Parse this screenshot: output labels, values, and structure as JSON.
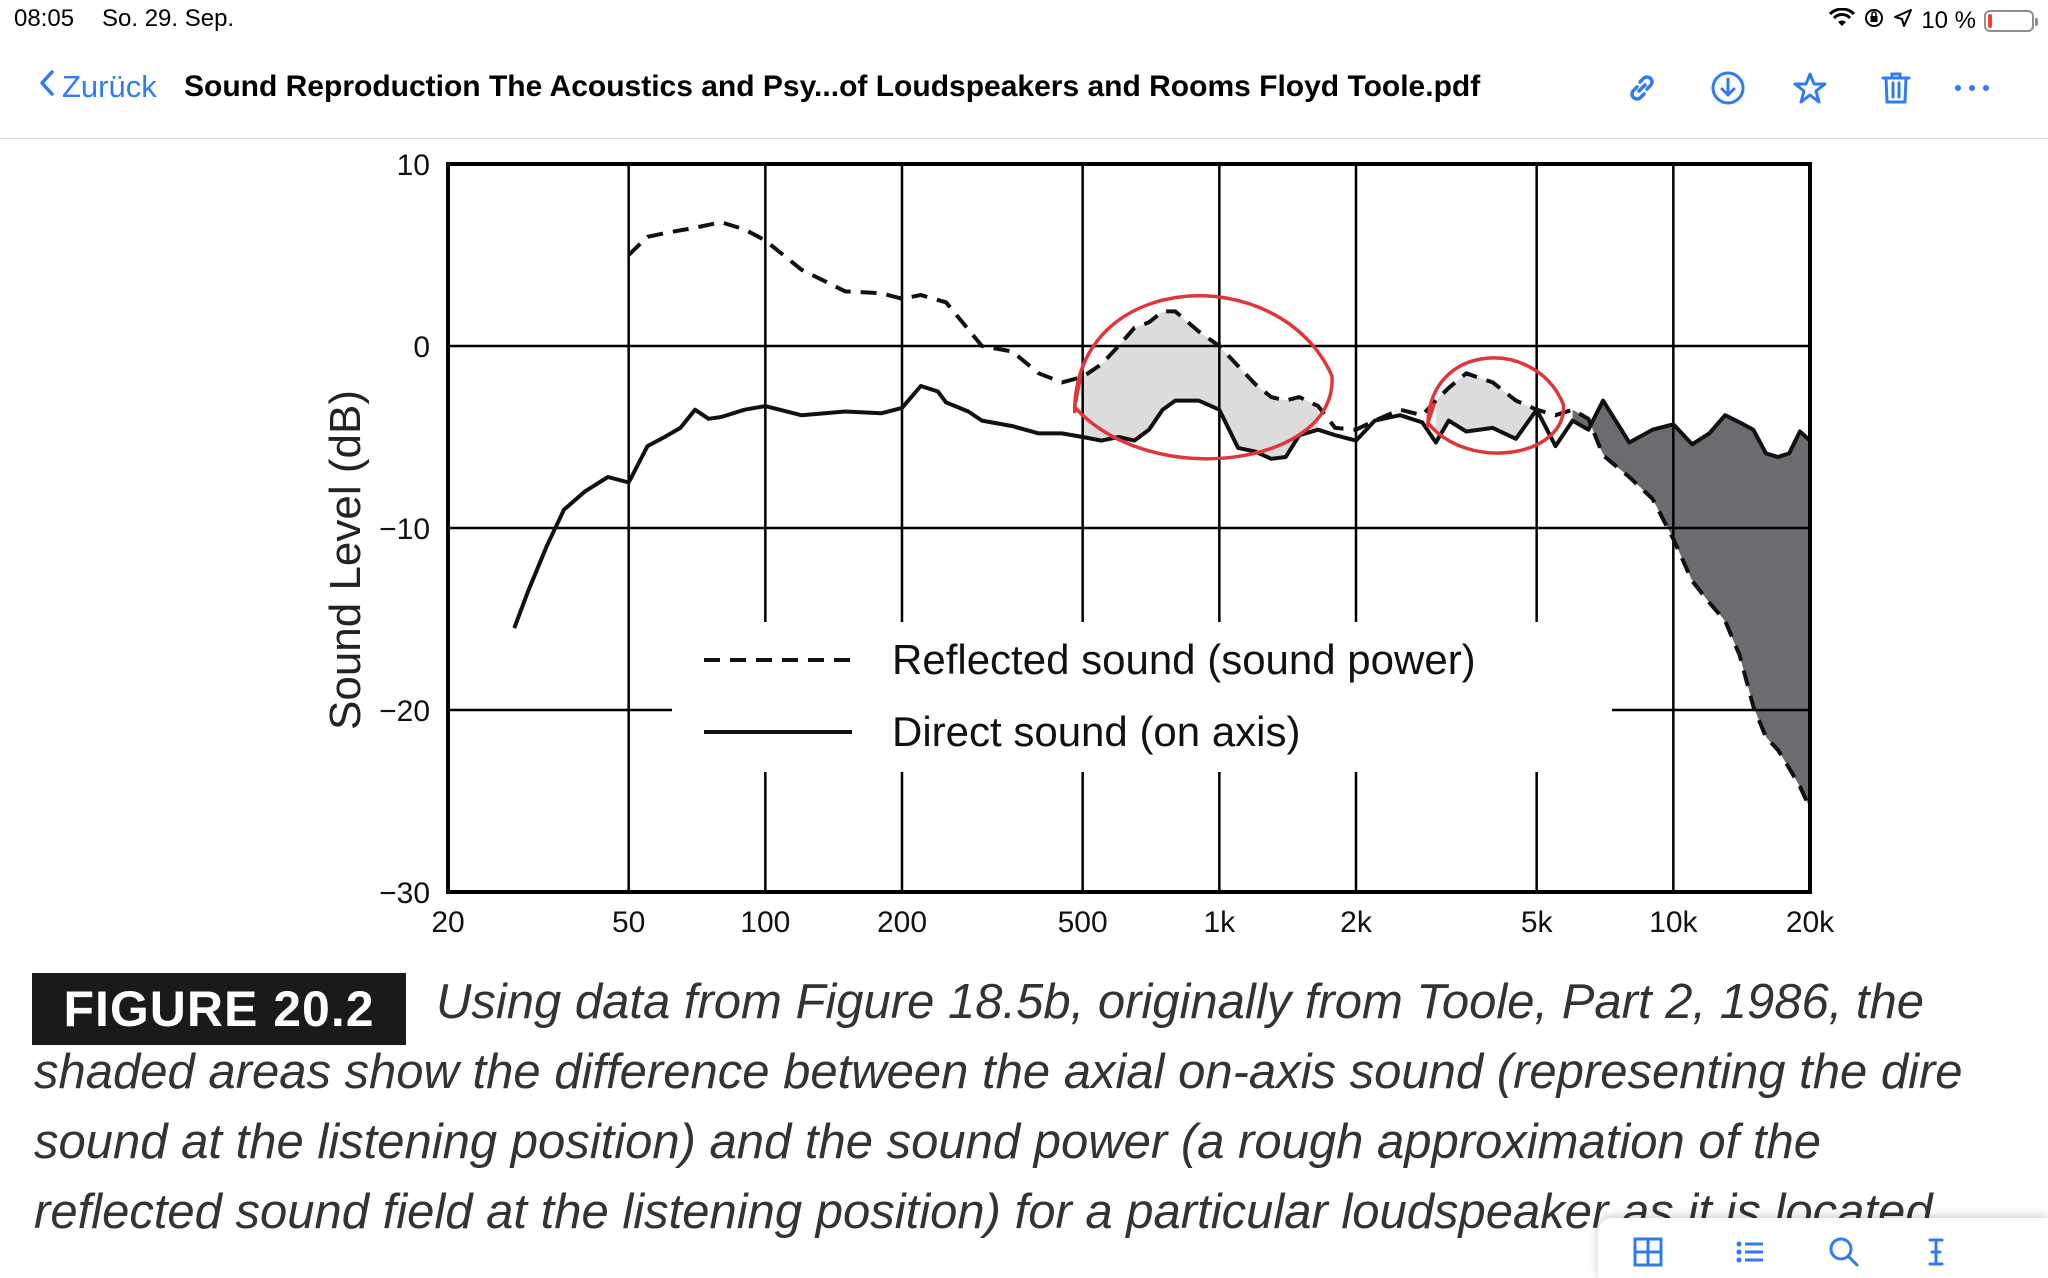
{
  "status": {
    "time": "08:05",
    "date": "So. 29. Sep.",
    "battery": "10 %",
    "battery_level": 0.1
  },
  "nav": {
    "back_label": "Zurück",
    "doc_title": "Sound Reproduction The Acoustics and Psy...of Loudspeakers and Rooms Floyd Toole.pdf"
  },
  "icons": {
    "status": [
      "wifi-icon",
      "orientation-lock-icon",
      "location-icon",
      "battery-icon"
    ],
    "nav": [
      "link-icon",
      "download-icon",
      "bookmark-star-icon",
      "trash-icon",
      "more-icon"
    ],
    "toolbar": [
      "thumbnail-grid-icon",
      "outline-list-icon",
      "search-icon",
      "text-cursor-icon"
    ]
  },
  "colors": {
    "accent": "#2f7bf5",
    "annotation_red": "#e0363a",
    "shade_light": "#dcdcdc",
    "shade_dark": "#6b6b70",
    "figure_badge": "#1a1a1a",
    "battery_low": "#ff3b30"
  },
  "chart_data": {
    "type": "line",
    "ylabel": "Sound Level (dB)",
    "xscale": "log",
    "xlim": [
      20,
      20000
    ],
    "ylim": [
      -30,
      10
    ],
    "grid": true,
    "x_ticks": [
      20,
      50,
      100,
      200,
      500,
      1000,
      2000,
      5000,
      10000,
      20000
    ],
    "x_tick_labels": [
      "20",
      "50",
      "100",
      "200",
      "500",
      "1k",
      "2k",
      "5k",
      "10k",
      "20k"
    ],
    "y_ticks": [
      10,
      0,
      -10,
      -20,
      -30
    ],
    "y_tick_labels": [
      "10",
      "0",
      "−10",
      "−20",
      "−30"
    ],
    "series": [
      {
        "name": "Reflected sound (sound power)",
        "style": "dashed",
        "x": [
          50,
          55,
          60,
          70,
          80,
          90,
          100,
          120,
          150,
          180,
          200,
          220,
          250,
          300,
          350,
          400,
          450,
          500,
          550,
          600,
          650,
          700,
          750,
          800,
          900,
          1000,
          1100,
          1200,
          1300,
          1400,
          1500,
          1650,
          1800,
          2000,
          2200,
          2500,
          2800,
          3000,
          3200,
          3500,
          4000,
          4500,
          5000,
          5500,
          6000,
          6500,
          7000,
          8000,
          9000,
          10000,
          11000,
          12000,
          13000,
          14000,
          15000,
          16000,
          17000,
          18000,
          19000,
          20000
        ],
        "y": [
          5,
          6,
          6.2,
          6.5,
          6.8,
          6.4,
          5.8,
          4.2,
          3,
          2.9,
          2.6,
          2.8,
          2.4,
          0,
          -0.3,
          -1.5,
          -2,
          -1.7,
          -1,
          0,
          1,
          1.3,
          1.9,
          1.9,
          0.8,
          0,
          -1.1,
          -2.1,
          -2.8,
          -3,
          -2.8,
          -3.3,
          -4.5,
          -4.6,
          -4.1,
          -3.5,
          -3.8,
          -3,
          -2.3,
          -1.5,
          -2,
          -3,
          -3.5,
          -3.8,
          -3.5,
          -4,
          -6,
          -7.2,
          -8.4,
          -10.6,
          -12.9,
          -14.1,
          -15.1,
          -17,
          -19.8,
          -21.5,
          -22.2,
          -23.2,
          -24.2,
          -25.4
        ]
      },
      {
        "name": "Direct sound (on axis)",
        "style": "solid",
        "x": [
          28,
          30,
          33,
          36,
          40,
          45,
          50,
          55,
          60,
          65,
          70,
          75,
          80,
          90,
          100,
          120,
          150,
          180,
          200,
          220,
          240,
          250,
          280,
          300,
          350,
          400,
          450,
          500,
          550,
          600,
          650,
          700,
          750,
          800,
          900,
          1000,
          1100,
          1200,
          1300,
          1400,
          1500,
          1650,
          1800,
          2000,
          2200,
          2500,
          2800,
          3000,
          3200,
          3500,
          4000,
          4500,
          5000,
          5500,
          6000,
          6500,
          7000,
          8000,
          9000,
          10000,
          11000,
          12000,
          13000,
          14000,
          15000,
          16000,
          17000,
          18000,
          19000,
          20000
        ],
        "y": [
          -15.5,
          -13.5,
          -11,
          -9,
          -8,
          -7.2,
          -7.5,
          -5.5,
          -5,
          -4.5,
          -3.5,
          -4,
          -3.9,
          -3.5,
          -3.3,
          -3.8,
          -3.6,
          -3.7,
          -3.4,
          -2.2,
          -2.5,
          -3.1,
          -3.6,
          -4.1,
          -4.4,
          -4.8,
          -4.8,
          -5,
          -5.2,
          -5,
          -5.2,
          -4.6,
          -3.5,
          -3,
          -3,
          -3.5,
          -5.6,
          -5.8,
          -6.2,
          -6.1,
          -4.9,
          -4.6,
          -4.9,
          -5.2,
          -4.1,
          -3.8,
          -4.2,
          -5.3,
          -4.1,
          -4.7,
          -4.5,
          -5.1,
          -3.5,
          -5.5,
          -4.1,
          -4.6,
          -3,
          -5.3,
          -4.6,
          -4.3,
          -5.4,
          -4.8,
          -3.8,
          -4.2,
          -4.6,
          -5.9,
          -6.1,
          -5.9,
          -4.7,
          -5.2
        ]
      }
    ],
    "shaded_regions": [
      {
        "from": 500,
        "to": 1650,
        "tone": "light"
      },
      {
        "from": 3000,
        "to": 5000,
        "tone": "light"
      },
      {
        "from": 6000,
        "to": 20000,
        "tone": "dark"
      }
    ],
    "legend": {
      "placement": "bottom-center"
    },
    "annotations": [
      {
        "type": "hand-drawn circle",
        "around_x": [
          500,
          1700
        ],
        "color": "red"
      },
      {
        "type": "hand-drawn circle",
        "around_x": [
          3000,
          5500
        ],
        "color": "red"
      }
    ]
  },
  "figure": {
    "label": "FIGURE 20.2",
    "caption_lines": [
      "Using data from Figure 18.5b, originally from Toole, Part 2, 1986, the",
      "shaded areas show the difference between the axial on-axis sound (representing the dire",
      "sound at the listening position) and the sound power (a rough approximation of the",
      "reflected sound field at the listening position) for a particular loudspeaker as it is located"
    ]
  }
}
